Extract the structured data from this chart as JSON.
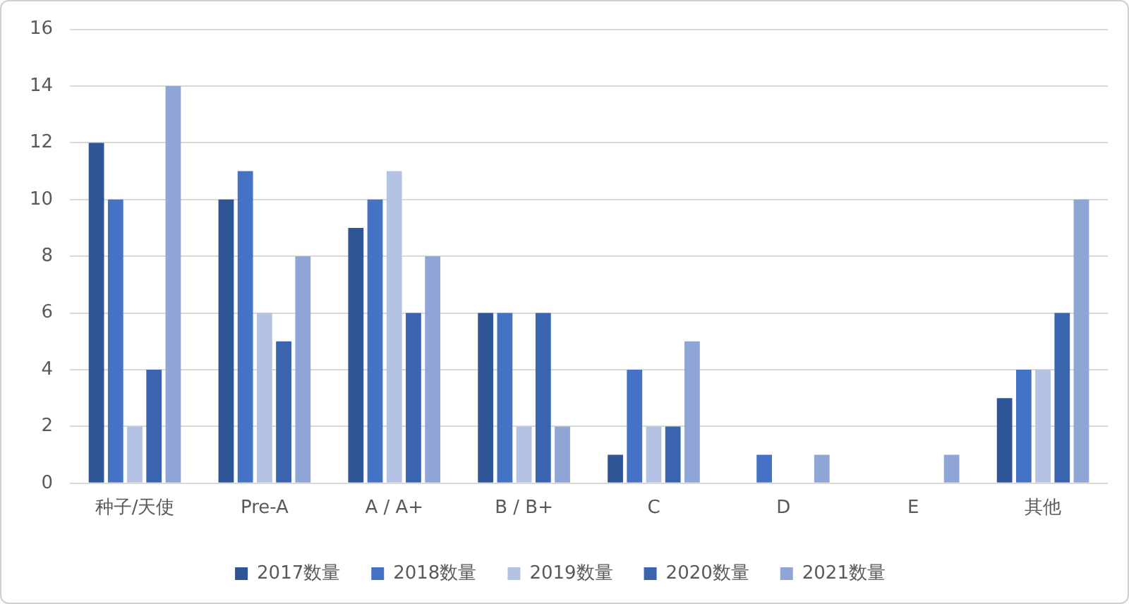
{
  "chart_data": {
    "type": "bar",
    "categories": [
      "种子/天使",
      "Pre-A",
      "A / A+",
      "B / B+",
      "C",
      "D",
      "E",
      "其他"
    ],
    "series": [
      {
        "name": "2017数量",
        "color": "#2f5597",
        "values": [
          12,
          10,
          9,
          6,
          1,
          0,
          0,
          3
        ]
      },
      {
        "name": "2018数量",
        "color": "#4472c4",
        "values": [
          10,
          11,
          10,
          6,
          4,
          1,
          0,
          4
        ]
      },
      {
        "name": "2019数量",
        "color": "#b4c2e4",
        "values": [
          2,
          6,
          11,
          2,
          2,
          0,
          0,
          4
        ]
      },
      {
        "name": "2020数量",
        "color": "#3a64ad",
        "values": [
          4,
          5,
          6,
          6,
          2,
          0,
          0,
          6
        ]
      },
      {
        "name": "2021数量",
        "color": "#8fa5d5",
        "values": [
          14,
          8,
          8,
          2,
          5,
          1,
          1,
          10
        ]
      }
    ],
    "ylim": [
      0,
      16
    ],
    "yticks": [
      0,
      2,
      4,
      6,
      8,
      10,
      12,
      14,
      16
    ],
    "grid": "y",
    "legend": "bottom"
  }
}
